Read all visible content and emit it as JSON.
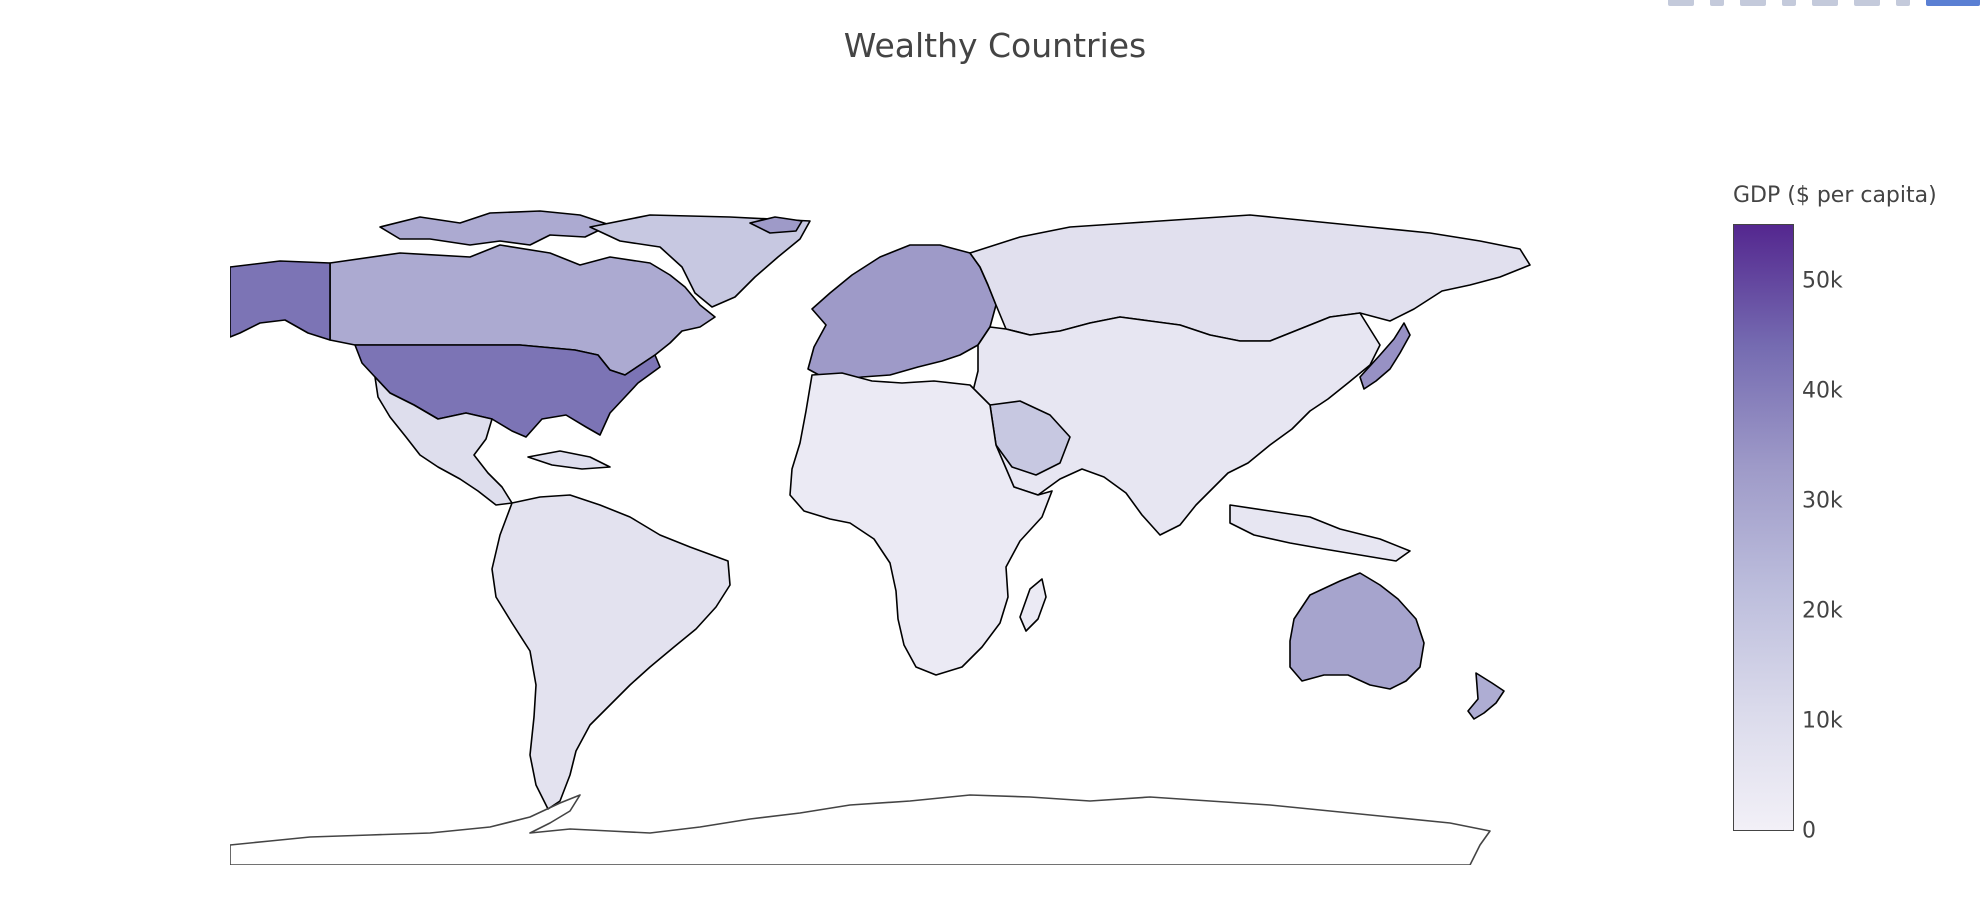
{
  "title": "Wealthy Countries",
  "colorbar": {
    "title": "GDP ($ per capita)",
    "ticks": [
      "0",
      "10k",
      "20k",
      "30k",
      "40k",
      "50k"
    ],
    "range": [
      0,
      55000
    ],
    "colors": [
      "#f2f0f7",
      "#dadaeb",
      "#bcbddc",
      "#9e9ac8",
      "#756bb1",
      "#54278f"
    ]
  },
  "map": {
    "type": "choropleth",
    "projection": "equirectangular",
    "border_color": "#000000",
    "regions": [
      {
        "id": "usa",
        "value": 42000
      },
      {
        "id": "canada",
        "value": 28000
      },
      {
        "id": "greenland",
        "value": 18000
      },
      {
        "id": "mexico",
        "value": 9000
      },
      {
        "id": "south-america",
        "value": 7000
      },
      {
        "id": "europe",
        "value": 33000
      },
      {
        "id": "russia",
        "value": 8000
      },
      {
        "id": "asia",
        "value": 5000
      },
      {
        "id": "africa",
        "value": 3000
      },
      {
        "id": "australia",
        "value": 30000
      },
      {
        "id": "new-zealand",
        "value": 27000
      },
      {
        "id": "japan",
        "value": 35000
      },
      {
        "id": "antarctica",
        "value": 0
      }
    ]
  },
  "modebar": {
    "icons": [
      "camera-icon",
      "zoom-icon",
      "pan-icon",
      "select-icon",
      "lasso-icon",
      "home-icon",
      "hover-icon",
      "spike-icon",
      "plotly-logo-icon"
    ]
  }
}
